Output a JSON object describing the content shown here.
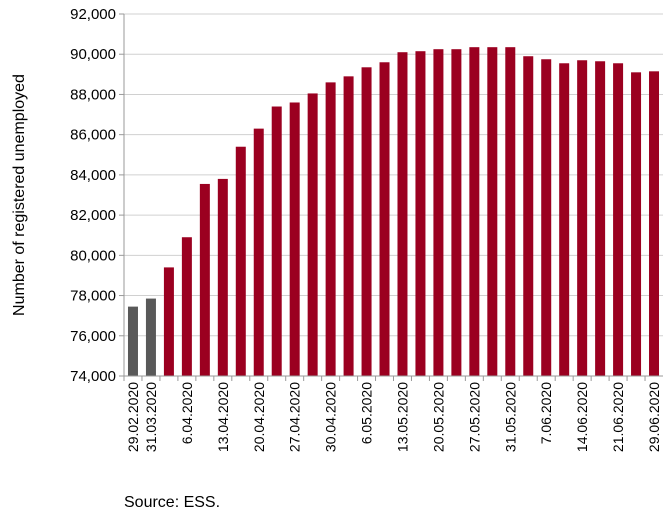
{
  "chart_data": {
    "type": "bar",
    "title": "",
    "xlabel": "",
    "ylabel": "Number of registered unemployed",
    "ylim": [
      74000,
      92000
    ],
    "yticks": [
      74000,
      76000,
      78000,
      80000,
      82000,
      84000,
      86000,
      88000,
      90000,
      92000
    ],
    "ytick_labels": [
      "74,000",
      "76,000",
      "78,000",
      "80,000",
      "82,000",
      "84,000",
      "86,000",
      "88,000",
      "90,000",
      "92,000"
    ],
    "grid": "horizontal",
    "colors": {
      "historical": "#595959",
      "current": "#9b0020"
    },
    "categories": [
      "29.02.2020",
      "31.03.2020",
      "",
      "6.04.2020",
      "",
      "13.04.2020",
      "",
      "20.04.2020",
      "",
      "27.04.2020",
      "",
      "30.04.2020",
      "",
      "6.05.2020",
      "",
      "13.05.2020",
      "",
      "20.05.2020",
      "",
      "27.05.2020",
      "",
      "31.05.2020",
      "",
      "7.06.2020",
      "",
      "14.06.2020",
      "",
      "21.06.2020",
      "",
      "29.06.2020"
    ],
    "values": [
      77450,
      77850,
      79400,
      80900,
      83550,
      83800,
      85400,
      86300,
      87400,
      87600,
      88050,
      88600,
      88900,
      89350,
      89600,
      90100,
      90150,
      90250,
      90250,
      90350,
      90350,
      90350,
      89900,
      89750,
      89550,
      89700,
      89650,
      89550,
      89100,
      89150
    ],
    "bar_color_keys": [
      "historical",
      "historical",
      "current",
      "current",
      "current",
      "current",
      "current",
      "current",
      "current",
      "current",
      "current",
      "current",
      "current",
      "current",
      "current",
      "current",
      "current",
      "current",
      "current",
      "current",
      "current",
      "current",
      "current",
      "current",
      "current",
      "current",
      "current",
      "current",
      "current",
      "current"
    ]
  },
  "footer": {
    "source": "Source: ESS."
  }
}
